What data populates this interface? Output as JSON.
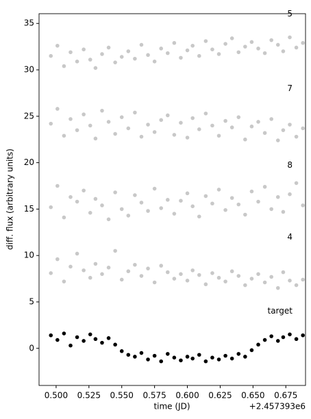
{
  "chart_data": {
    "type": "scatter",
    "xlabel": "time (JD)",
    "ylabel": "diff. flux (arbitrary units)",
    "x_offset_label": "+2.457393e6",
    "xlim": [
      0.487,
      0.69
    ],
    "ylim": [
      -4,
      36.05
    ],
    "xticks": [
      {
        "value": 0.5,
        "label": "0.500"
      },
      {
        "value": 0.525,
        "label": "0.525"
      },
      {
        "value": 0.55,
        "label": "0.550"
      },
      {
        "value": 0.575,
        "label": "0.575"
      },
      {
        "value": 0.6,
        "label": "0.600"
      },
      {
        "value": 0.625,
        "label": "0.625"
      },
      {
        "value": 0.65,
        "label": "0.650"
      },
      {
        "value": 0.675,
        "label": "0.675"
      }
    ],
    "yticks": [
      0,
      5,
      10,
      15,
      20,
      25,
      30,
      35
    ],
    "x": [
      0.496,
      0.501,
      0.506,
      0.511,
      0.516,
      0.521,
      0.526,
      0.53,
      0.535,
      0.54,
      0.545,
      0.55,
      0.555,
      0.56,
      0.565,
      0.57,
      0.575,
      0.58,
      0.585,
      0.59,
      0.595,
      0.6,
      0.604,
      0.609,
      0.614,
      0.619,
      0.624,
      0.629,
      0.634,
      0.639,
      0.644,
      0.649,
      0.654,
      0.659,
      0.664,
      0.669,
      0.673,
      0.678,
      0.683,
      0.688
    ],
    "series": [
      {
        "name": "target",
        "color": "#000000",
        "values": [
          1.4,
          0.9,
          1.6,
          0.3,
          1.2,
          0.8,
          1.5,
          1.0,
          0.6,
          1.1,
          0.4,
          -0.3,
          -0.7,
          -0.9,
          -0.5,
          -1.2,
          -0.8,
          -1.4,
          -0.6,
          -1.0,
          -1.3,
          -0.9,
          -1.1,
          -0.7,
          -1.4,
          -1.0,
          -1.2,
          -0.8,
          -1.1,
          -0.6,
          -0.9,
          -0.2,
          0.4,
          0.9,
          1.3,
          0.8,
          1.2,
          1.5,
          1.0,
          1.4
        ]
      },
      {
        "name": "4",
        "color": "#c8c8c8",
        "values": [
          8.1,
          9.6,
          7.2,
          8.8,
          10.2,
          8.4,
          7.6,
          9.1,
          8.0,
          8.7,
          10.5,
          7.4,
          8.3,
          9.0,
          7.8,
          8.6,
          7.1,
          8.9,
          8.2,
          7.5,
          8.0,
          7.3,
          8.4,
          7.9,
          6.9,
          8.1,
          7.6,
          7.2,
          8.3,
          7.8,
          6.8,
          7.5,
          8.0,
          7.1,
          7.7,
          6.5,
          8.2,
          7.3,
          6.8,
          7.4
        ]
      },
      {
        "name": "8",
        "color": "#c8c8c8",
        "values": [
          15.2,
          17.5,
          14.1,
          16.3,
          15.8,
          17.0,
          14.6,
          16.1,
          15.4,
          13.9,
          16.8,
          15.0,
          14.3,
          16.5,
          15.7,
          14.8,
          17.2,
          15.1,
          16.0,
          14.5,
          15.9,
          16.7,
          15.3,
          14.2,
          16.4,
          15.6,
          17.1,
          14.9,
          16.2,
          15.5,
          14.4,
          16.9,
          15.8,
          17.4,
          15.0,
          16.3,
          14.7,
          16.6,
          17.8,
          15.4
        ]
      },
      {
        "name": "7",
        "color": "#c8c8c8",
        "values": [
          24.2,
          25.8,
          22.9,
          24.7,
          23.5,
          25.2,
          24.0,
          22.6,
          25.6,
          24.4,
          23.1,
          24.9,
          23.7,
          25.4,
          22.8,
          24.1,
          23.3,
          24.6,
          25.1,
          23.0,
          24.3,
          22.7,
          24.8,
          23.6,
          25.3,
          24.0,
          22.9,
          24.5,
          23.8,
          24.9,
          22.5,
          23.9,
          24.4,
          23.2,
          24.7,
          22.4,
          23.5,
          24.1,
          22.8,
          23.7
        ]
      },
      {
        "name": "5",
        "color": "#c8c8c8",
        "values": [
          31.5,
          32.6,
          30.4,
          31.9,
          30.9,
          32.2,
          31.1,
          30.2,
          31.7,
          32.4,
          30.8,
          31.4,
          32.0,
          31.2,
          32.7,
          31.6,
          30.9,
          32.3,
          31.8,
          32.9,
          31.3,
          32.1,
          32.6,
          31.5,
          33.1,
          32.2,
          31.7,
          32.8,
          33.4,
          31.9,
          32.5,
          33.0,
          32.3,
          31.8,
          33.2,
          32.7,
          32.0,
          33.5,
          32.4,
          32.9
        ]
      }
    ]
  }
}
